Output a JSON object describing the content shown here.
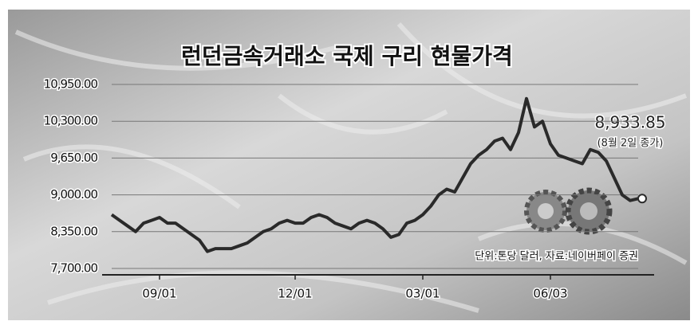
{
  "chart_data": {
    "type": "line",
    "title": "런던금속거래소 국제 구리 현물가격",
    "annotation": "8,933.85",
    "annotation_note": "(8월 2일 종가)",
    "source": "단위:톤당 달러, 자료:네이버페이 증권",
    "categories": [
      null,
      null,
      null,
      null,
      null,
      null,
      "09/01",
      null,
      null,
      null,
      null,
      null,
      null,
      null,
      null,
      null,
      null,
      null,
      null,
      null,
      null,
      null,
      null,
      "12/01",
      null,
      null,
      null,
      null,
      null,
      null,
      null,
      null,
      null,
      null,
      null,
      null,
      null,
      null,
      null,
      "03/01",
      null,
      null,
      null,
      null,
      null,
      null,
      null,
      null,
      null,
      null,
      null,
      null,
      null,
      null,
      null,
      "06/03",
      null,
      null,
      null,
      null,
      null,
      null,
      null,
      null,
      null,
      null,
      null
    ],
    "values": [
      8650,
      8550,
      8450,
      8350,
      8500,
      8550,
      8600,
      8500,
      8500,
      8400,
      8300,
      8200,
      8000,
      8050,
      8050,
      8050,
      8100,
      8150,
      8250,
      8350,
      8400,
      8500,
      8550,
      8500,
      8500,
      8600,
      8650,
      8600,
      8500,
      8450,
      8400,
      8500,
      8550,
      8500,
      8400,
      8250,
      8300,
      8500,
      8550,
      8650,
      8800,
      9000,
      9100,
      9050,
      9300,
      9550,
      9700,
      9800,
      9950,
      10000,
      9800,
      10100,
      10700,
      10200,
      10300,
      9900,
      9700,
      9650,
      9600,
      9550,
      9800,
      9750,
      9600,
      9300,
      9000,
      8900,
      8933.85
    ],
    "color": "#2a2a2a",
    "ylim": [
      7700,
      10950
    ],
    "yticks": [
      {
        "value": 7700,
        "label": "7,700.00"
      },
      {
        "value": 8350,
        "label": "8,350.00"
      },
      {
        "value": 9000,
        "label": "9,000.00"
      },
      {
        "value": 9650,
        "label": "9,650.00"
      },
      {
        "value": 10300,
        "label": "10,300.00"
      },
      {
        "value": 10950,
        "label": "10,950.00"
      }
    ],
    "grid": true
  }
}
